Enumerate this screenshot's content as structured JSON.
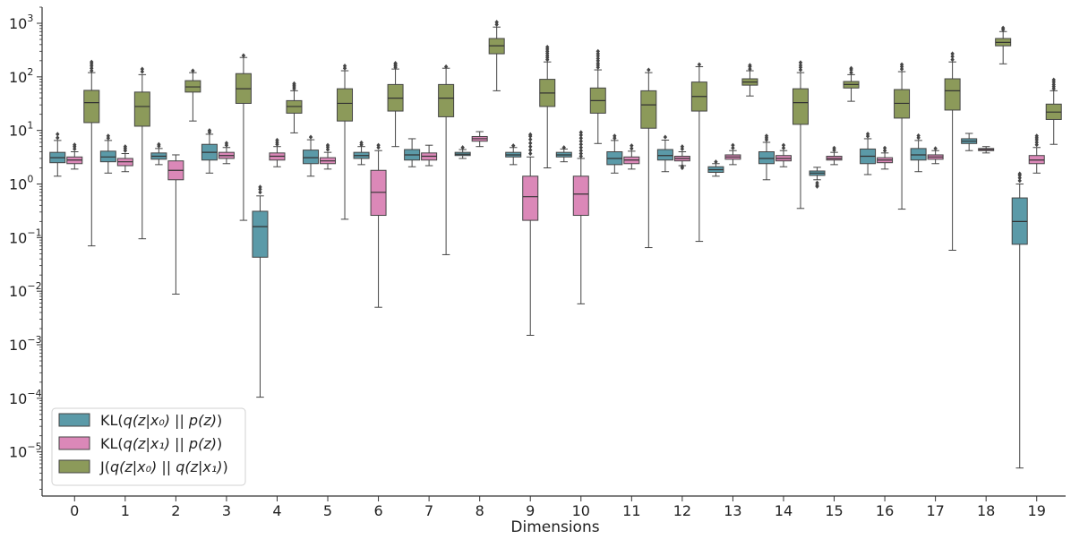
{
  "chart_data": {
    "type": "box",
    "title": "",
    "xlabel": "Dimensions",
    "ylabel": "",
    "yscale": "log",
    "ylim": [
      1.5e-06,
      2000
    ],
    "categories": [
      "0",
      "1",
      "2",
      "3",
      "4",
      "5",
      "6",
      "7",
      "8",
      "9",
      "10",
      "11",
      "12",
      "13",
      "14",
      "15",
      "16",
      "17",
      "18",
      "19"
    ],
    "y_ticks": [
      {
        "value": 1e-05,
        "base": "10",
        "exp": "−5"
      },
      {
        "value": 0.0001,
        "base": "10",
        "exp": "−4"
      },
      {
        "value": 0.001,
        "base": "10",
        "exp": "−3"
      },
      {
        "value": 0.01,
        "base": "10",
        "exp": "−2"
      },
      {
        "value": 0.1,
        "base": "10",
        "exp": "−1"
      },
      {
        "value": 1,
        "base": "10",
        "exp": "0"
      },
      {
        "value": 10,
        "base": "10",
        "exp": "1"
      },
      {
        "value": 100,
        "base": "10",
        "exp": "2"
      },
      {
        "value": 1000,
        "base": "10",
        "exp": "3"
      }
    ],
    "legend": {
      "position": "lower-left",
      "entries": [
        {
          "prefix": "KL(",
          "math": "q(z|x₀) || p(z)",
          "suffix": ")"
        },
        {
          "prefix": "KL(",
          "math": "q(z|x₁) || p(z)",
          "suffix": ")"
        },
        {
          "prefix": "J(",
          "math": "q(z|x₀) || q(z|x₁)",
          "suffix": ")"
        }
      ]
    },
    "series": [
      {
        "color": "#5b9aa8",
        "boxes": [
          {
            "wlo": 1.4,
            "q1": 2.5,
            "med": 3.1,
            "q3": 3.9,
            "whi": 6.5,
            "fliers": [
              7.3,
              8.5
            ]
          },
          {
            "wlo": 1.6,
            "q1": 2.6,
            "med": 3.2,
            "q3": 4.1,
            "whi": 6.5,
            "fliers": [
              7.2,
              7.9
            ]
          },
          {
            "wlo": 2.3,
            "q1": 2.9,
            "med": 3.3,
            "q3": 3.8,
            "whi": 4.6,
            "fliers": [
              5.1,
              5.5
            ]
          },
          {
            "wlo": 1.6,
            "q1": 2.8,
            "med": 3.9,
            "q3": 5.5,
            "whi": 8.5,
            "fliers": [
              9.3,
              10
            ]
          },
          {
            "wlo": 0.000105,
            "q1": 0.043,
            "med": 0.16,
            "q3": 0.31,
            "whi": 0.6,
            "fliers": [
              0.7,
              0.8,
              0.88
            ]
          },
          {
            "wlo": 1.4,
            "q1": 2.4,
            "med": 3.1,
            "q3": 4.3,
            "whi": 6.7,
            "fliers": [
              7.5
            ]
          },
          {
            "wlo": 2.3,
            "q1": 3.0,
            "med": 3.4,
            "q3": 3.9,
            "whi": 5.0,
            "fliers": [
              5.4,
              5.9
            ]
          },
          {
            "wlo": 2.1,
            "q1": 2.8,
            "med": 3.5,
            "q3": 4.4,
            "whi": 7.0,
            "fliers": []
          },
          {
            "wlo": 3.0,
            "q1": 3.4,
            "med": 3.6,
            "q3": 3.9,
            "whi": 4.4,
            "fliers": [
              4.8
            ]
          },
          {
            "wlo": 2.3,
            "q1": 3.2,
            "med": 3.5,
            "q3": 3.9,
            "whi": 4.8,
            "fliers": [
              5.2
            ]
          },
          {
            "wlo": 2.6,
            "q1": 3.2,
            "med": 3.5,
            "q3": 3.9,
            "whi": 4.5,
            "fliers": [
              4.8
            ]
          },
          {
            "wlo": 1.6,
            "q1": 2.3,
            "med": 3.0,
            "q3": 4.0,
            "whi": 6.5,
            "fliers": [
              7.2,
              7.9
            ]
          },
          {
            "wlo": 1.7,
            "q1": 2.8,
            "med": 3.4,
            "q3": 4.4,
            "whi": 6.6,
            "fliers": [
              7.5
            ]
          },
          {
            "wlo": 1.4,
            "q1": 1.65,
            "med": 1.85,
            "q3": 2.1,
            "whi": 2.4,
            "fliers": [
              2.6
            ]
          },
          {
            "wlo": 1.2,
            "q1": 2.4,
            "med": 3.0,
            "q3": 4.0,
            "whi": 6.0,
            "fliers": [
              6.7,
              7.3,
              7.9
            ]
          },
          {
            "wlo": 1.2,
            "q1": 1.45,
            "med": 1.6,
            "q3": 1.75,
            "whi": 2.05,
            "fliers": [
              1.05,
              0.95,
              0.9
            ]
          },
          {
            "wlo": 1.5,
            "q1": 2.4,
            "med": 3.3,
            "q3": 4.5,
            "whi": 7.0,
            "fliers": [
              7.8,
              8.6
            ]
          },
          {
            "wlo": 1.7,
            "q1": 2.8,
            "med": 3.5,
            "q3": 4.6,
            "whi": 6.5,
            "fliers": [
              7.3,
              8.0
            ]
          },
          {
            "wlo": 4.2,
            "q1": 5.7,
            "med": 6.3,
            "q3": 7.0,
            "whi": 8.8,
            "fliers": []
          },
          {
            "wlo": 5e-06,
            "q1": 0.075,
            "med": 0.2,
            "q3": 0.55,
            "whi": 1.0,
            "fliers": [
              1.15,
              1.3,
              1.45,
              1.55
            ]
          }
        ]
      },
      {
        "color": "#db88b8",
        "boxes": [
          {
            "wlo": 1.9,
            "q1": 2.4,
            "med": 2.8,
            "q3": 3.2,
            "whi": 4.0,
            "fliers": [
              4.5,
              5.0,
              5.4
            ]
          },
          {
            "wlo": 1.7,
            "q1": 2.2,
            "med": 2.6,
            "q3": 3.0,
            "whi": 3.7,
            "fliers": [
              4.2,
              4.6,
              5.0
            ]
          },
          {
            "wlo": 0.0088,
            "q1": 1.2,
            "med": 1.8,
            "q3": 2.7,
            "whi": 3.5,
            "fliers": []
          },
          {
            "wlo": 2.4,
            "q1": 3.0,
            "med": 3.4,
            "q3": 3.9,
            "whi": 4.8,
            "fliers": [
              5.3,
              5.8
            ]
          },
          {
            "wlo": 2.1,
            "q1": 2.8,
            "med": 3.3,
            "q3": 3.8,
            "whi": 5.0,
            "fliers": [
              5.5,
              6.0,
              6.6
            ]
          },
          {
            "wlo": 1.9,
            "q1": 2.4,
            "med": 2.7,
            "q3": 3.1,
            "whi": 3.9,
            "fliers": [
              4.4,
              4.9,
              5.3
            ]
          },
          {
            "wlo": 0.005,
            "q1": 0.26,
            "med": 0.7,
            "q3": 1.8,
            "whi": 4.2,
            "fliers": [
              4.8,
              5.3
            ]
          },
          {
            "wlo": 2.2,
            "q1": 2.8,
            "med": 3.3,
            "q3": 3.8,
            "whi": 5.3,
            "fliers": []
          },
          {
            "wlo": 5.0,
            "q1": 6.3,
            "med": 7.0,
            "q3": 7.7,
            "whi": 9.5,
            "fliers": []
          },
          {
            "wlo": 0.0015,
            "q1": 0.21,
            "med": 0.58,
            "q3": 1.4,
            "whi": 3.2,
            "fliers": [
              3.7,
              4.3,
              5.0,
              5.8,
              6.8,
              7.8,
              8.4
            ]
          },
          {
            "wlo": 0.0058,
            "q1": 0.26,
            "med": 0.65,
            "q3": 1.4,
            "whi": 3.0,
            "fliers": [
              3.3,
              3.7,
              4.2,
              4.8,
              5.5,
              6.3,
              7.2,
              8.2,
              9.2
            ]
          },
          {
            "wlo": 1.9,
            "q1": 2.4,
            "med": 2.8,
            "q3": 3.2,
            "whi": 4.1,
            "fliers": [
              4.6,
              5.2
            ]
          },
          {
            "wlo": 2.2,
            "q1": 2.7,
            "med": 3.0,
            "q3": 3.3,
            "whi": 4.0,
            "fliers": [
              2.0,
              2.15,
              4.5,
              5.0
            ]
          },
          {
            "wlo": 2.3,
            "q1": 2.9,
            "med": 3.2,
            "q3": 3.5,
            "whi": 4.2,
            "fliers": [
              4.7,
              5.3
            ]
          },
          {
            "wlo": 2.1,
            "q1": 2.7,
            "med": 3.0,
            "q3": 3.4,
            "whi": 4.2,
            "fliers": [
              4.7,
              5.3
            ]
          },
          {
            "wlo": 2.3,
            "q1": 2.8,
            "med": 3.0,
            "q3": 3.3,
            "whi": 3.9,
            "fliers": [
              4.3,
              4.7
            ]
          },
          {
            "wlo": 1.9,
            "q1": 2.5,
            "med": 2.8,
            "q3": 3.1,
            "whi": 3.8,
            "fliers": [
              4.2,
              4.7
            ]
          },
          {
            "wlo": 2.4,
            "q1": 2.9,
            "med": 3.2,
            "q3": 3.5,
            "whi": 4.2,
            "fliers": [
              4.6
            ]
          },
          {
            "wlo": 3.8,
            "q1": 4.2,
            "med": 4.4,
            "q3": 4.6,
            "whi": 5.0,
            "fliers": []
          },
          {
            "wlo": 1.6,
            "q1": 2.4,
            "med": 2.8,
            "q3": 3.4,
            "whi": 4.8,
            "fliers": [
              5.4,
              6.0,
              6.7,
              7.3,
              7.9
            ]
          }
        ]
      },
      {
        "color": "#8c9a5a",
        "boxes": [
          {
            "wlo": 0.07,
            "q1": 14,
            "med": 33,
            "q3": 56,
            "whi": 120,
            "fliers": [
              130,
              145,
              160,
              175,
              190
            ]
          },
          {
            "wlo": 0.095,
            "q1": 12,
            "med": 28,
            "q3": 52,
            "whi": 110,
            "fliers": [
              125,
              140
            ]
          },
          {
            "wlo": 15,
            "q1": 52,
            "med": 65,
            "q3": 85,
            "whi": 120,
            "fliers": [
              130
            ]
          },
          {
            "wlo": 0.21,
            "q1": 32,
            "med": 60,
            "q3": 115,
            "whi": 230,
            "fliers": [
              250
            ]
          },
          {
            "wlo": 9,
            "q1": 21,
            "med": 28,
            "q3": 36,
            "whi": 55,
            "fliers": [
              60,
              65,
              70,
              75
            ]
          },
          {
            "wlo": 0.22,
            "q1": 15,
            "med": 32,
            "q3": 60,
            "whi": 130,
            "fliers": [
              145,
              160
            ]
          },
          {
            "wlo": 5.0,
            "q1": 23,
            "med": 40,
            "q3": 72,
            "whi": 140,
            "fliers": [
              150,
              160,
              170,
              180
            ]
          },
          {
            "wlo": 0.048,
            "q1": 18,
            "med": 40,
            "q3": 72,
            "whi": 145,
            "fliers": [
              155
            ]
          },
          {
            "wlo": 55,
            "q1": 270,
            "med": 380,
            "q3": 520,
            "whi": 850,
            "fliers": [
              950,
              1050
            ]
          },
          {
            "wlo": 2.0,
            "q1": 28,
            "med": 50,
            "q3": 90,
            "whi": 190,
            "fliers": [
              210,
              230,
              250,
              275,
              300,
              330,
              360
            ]
          },
          {
            "wlo": 5.7,
            "q1": 21,
            "med": 36,
            "q3": 62,
            "whi": 135,
            "fliers": [
              150,
              165,
              180,
              200,
              220,
              245,
              270,
              300
            ]
          },
          {
            "wlo": 0.065,
            "q1": 11,
            "med": 30,
            "q3": 55,
            "whi": 120,
            "fliers": [
              135
            ]
          },
          {
            "wlo": 0.085,
            "q1": 23,
            "med": 43,
            "q3": 80,
            "whi": 155,
            "fliers": [
              170
            ]
          },
          {
            "wlo": 44,
            "q1": 70,
            "med": 80,
            "q3": 92,
            "whi": 130,
            "fliers": [
              140,
              155,
              165
            ]
          },
          {
            "wlo": 0.35,
            "q1": 13,
            "med": 33,
            "q3": 60,
            "whi": 120,
            "fliers": [
              135,
              150,
              165,
              185
            ]
          },
          {
            "wlo": 35,
            "q1": 62,
            "med": 72,
            "q3": 82,
            "whi": 110,
            "fliers": [
              120,
              135,
              145
            ]
          },
          {
            "wlo": 0.34,
            "q1": 17,
            "med": 32,
            "q3": 58,
            "whi": 125,
            "fliers": [
              140,
              155,
              170
            ]
          },
          {
            "wlo": 0.058,
            "q1": 24,
            "med": 55,
            "q3": 92,
            "whi": 190,
            "fliers": [
              210,
              240,
              270
            ]
          },
          {
            "wlo": 175,
            "q1": 380,
            "med": 440,
            "q3": 520,
            "whi": 700,
            "fliers": [
              760,
              820
            ]
          },
          {
            "wlo": 5.5,
            "q1": 16,
            "med": 22,
            "q3": 31,
            "whi": 55,
            "fliers": [
              60,
              66,
              72,
              80,
              88
            ]
          }
        ]
      }
    ]
  }
}
